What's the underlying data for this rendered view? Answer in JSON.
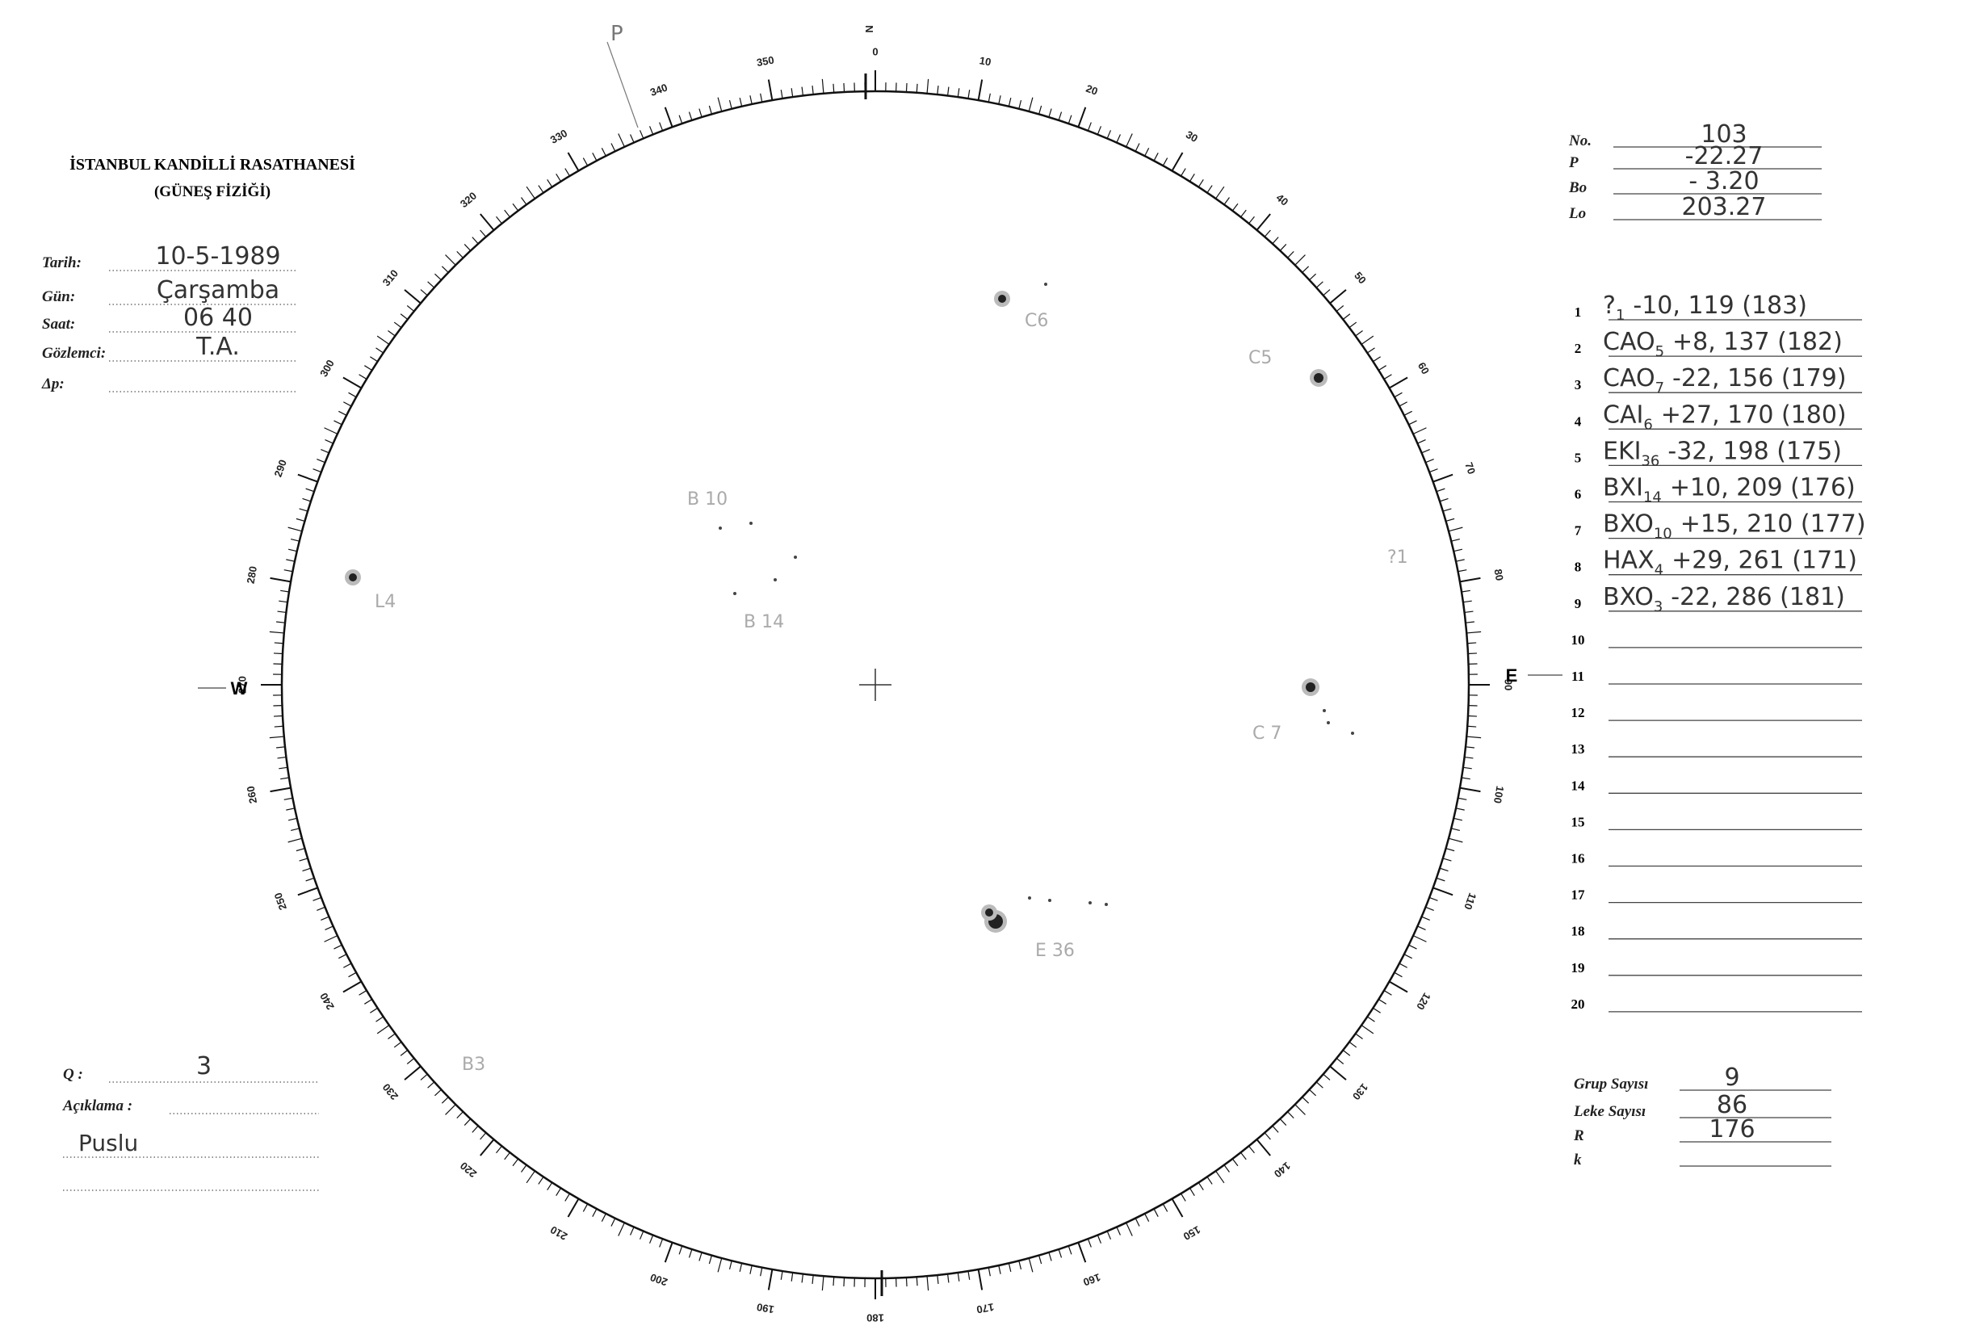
{
  "header": {
    "title": "İSTANBUL KANDİLLİ RASATHANESİ",
    "subtitle": "(GÜNEŞ FİZİĞİ)"
  },
  "observation": [
    {
      "label": "Tarih:",
      "value": "10-5-1989"
    },
    {
      "label": "Gün:",
      "value": "Çarşamba"
    },
    {
      "label": "Saat:",
      "value": "06 40"
    },
    {
      "label": "Gözlemci:",
      "value": "T.A."
    },
    {
      "label": "Δp:"
    }
  ],
  "parameters": [
    {
      "label": "No.",
      "value": "103"
    },
    {
      "label": "P",
      "value": "-22.27"
    },
    {
      "label": "Bo",
      "value": "- 3.20"
    },
    {
      "label": "Lo",
      "value": "203.27"
    }
  ],
  "groups": [
    {
      "number": "1",
      "class": "?",
      "sub": "1",
      "rest": "-10, 119 (183)"
    },
    {
      "number": "2",
      "class": "CAO",
      "sub": "5",
      "rest": "+8, 137 (182)"
    },
    {
      "number": "3",
      "class": "CAO",
      "sub": "7",
      "rest": "-22, 156 (179)"
    },
    {
      "number": "4",
      "class": "CAI",
      "sub": "6",
      "rest": "+27, 170 (180)"
    },
    {
      "number": "5",
      "class": "EKI",
      "sub": "36",
      "rest": "-32, 198 (175)"
    },
    {
      "number": "6",
      "class": "BXI",
      "sub": "14",
      "rest": "+10, 209 (176)"
    },
    {
      "number": "7",
      "class": "BXO",
      "sub": "10",
      "rest": "+15, 210 (177)"
    },
    {
      "number": "8",
      "class": "HAX",
      "sub": "4",
      "rest": "+29, 261 (171)"
    },
    {
      "number": "9",
      "class": "BXO",
      "sub": "3",
      "rest": "-22, 286 (181)"
    },
    {
      "number": "10"
    },
    {
      "number": "11"
    },
    {
      "number": "12"
    },
    {
      "number": "13"
    },
    {
      "number": "14"
    },
    {
      "number": "15"
    },
    {
      "number": "16"
    },
    {
      "number": "17"
    },
    {
      "number": "18"
    },
    {
      "number": "19"
    },
    {
      "number": "20"
    }
  ],
  "quality": {
    "label": "Q :",
    "value": "3"
  },
  "remarks": {
    "label": "Açıklama :",
    "value": "Puslu"
  },
  "summary": [
    {
      "label": "Grup Sayısı",
      "value": "9"
    },
    {
      "label": "Leke Sayısı",
      "value": "86"
    },
    {
      "label": "R",
      "value": "176"
    },
    {
      "label": "k"
    }
  ],
  "dial": {
    "labels": [
      "0",
      "10",
      "20",
      "30",
      "40",
      "50",
      "60",
      "70",
      "80",
      "90",
      "100",
      "110",
      "120",
      "130",
      "140",
      "150",
      "160",
      "170",
      "180",
      "190",
      "200",
      "210",
      "220",
      "230",
      "240",
      "250",
      "260",
      "270",
      "280",
      "290",
      "300",
      "310",
      "320",
      "330",
      "340",
      "350"
    ],
    "north": "N",
    "east": "E",
    "west": "W",
    "pole": "P"
  },
  "disk_notes": [
    "C6",
    "C5",
    "B 10",
    "B 14",
    "L4",
    "?1",
    "C 7",
    "E 36",
    "B3"
  ]
}
